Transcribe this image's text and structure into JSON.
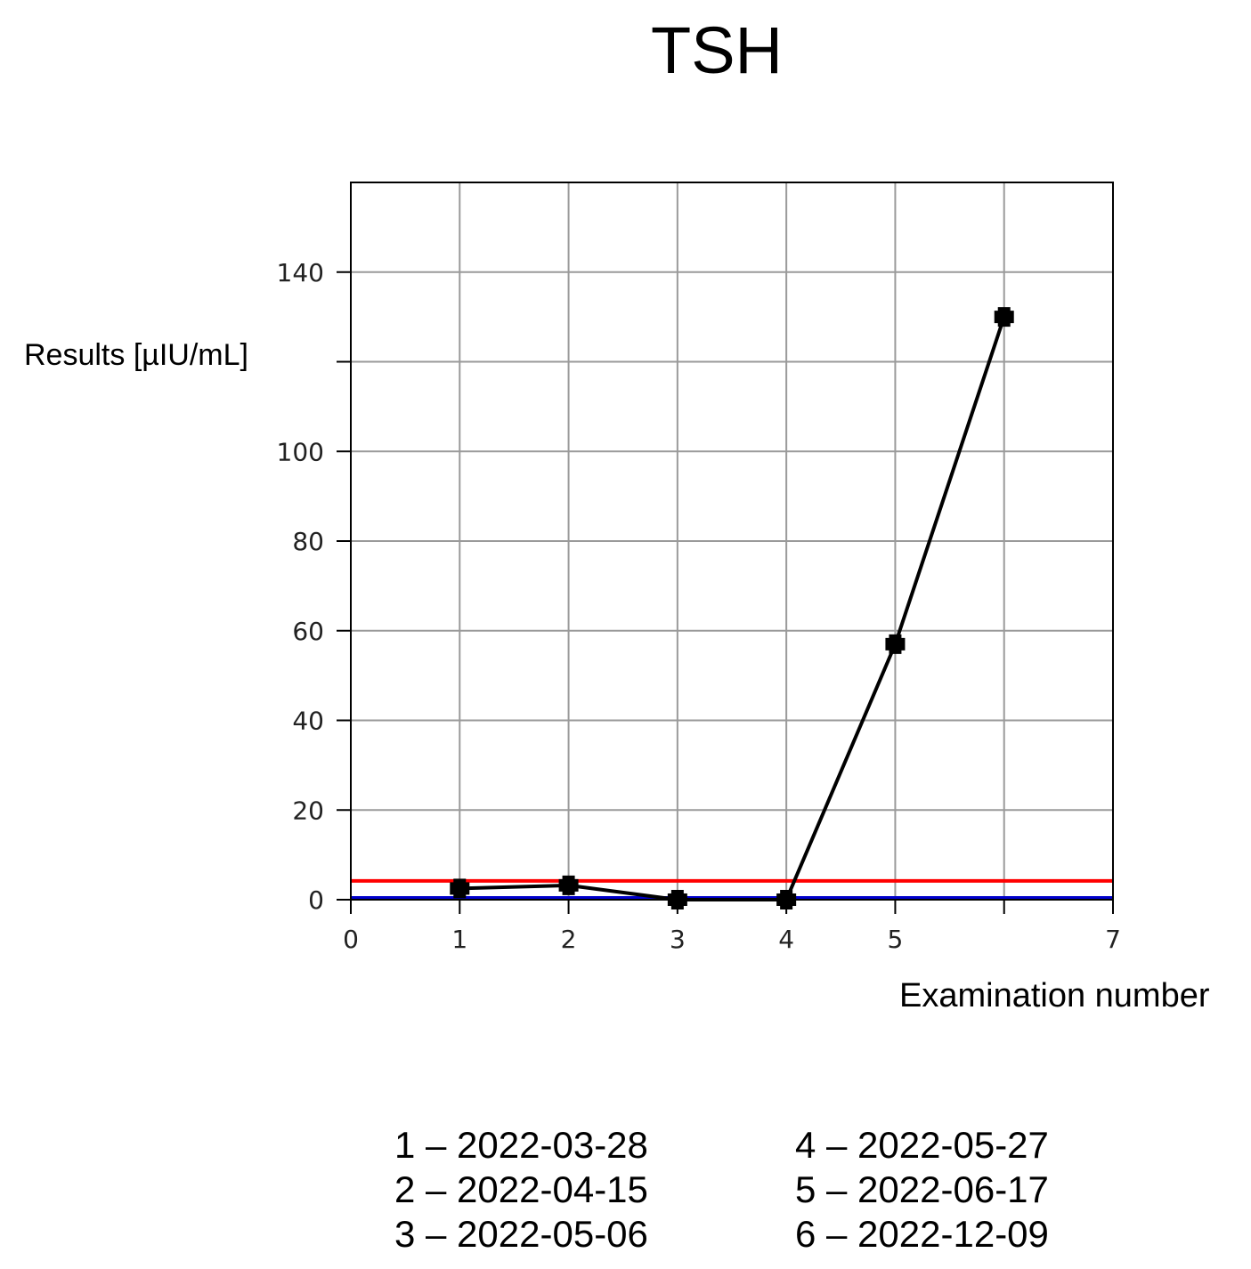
{
  "chart_data": {
    "type": "line",
    "title": "TSH",
    "ylabel": "Results [µIU/mL]",
    "xlabel": "Examination number",
    "xlim": [
      0,
      7
    ],
    "ylim": [
      0,
      160
    ],
    "x_ticks": [
      "0",
      "1",
      "2",
      "3",
      "4",
      "5",
      "7"
    ],
    "x_tick_values": [
      0,
      1,
      2,
      3,
      4,
      5,
      7
    ],
    "y_ticks": [
      "0",
      "20",
      "40",
      "60",
      "80",
      "100",
      "140"
    ],
    "y_tick_values": [
      0,
      20,
      40,
      60,
      80,
      100,
      140
    ],
    "grid": true,
    "series": [
      {
        "x": [
          1,
          2,
          3,
          4,
          5,
          6
        ],
        "values": [
          2.5,
          3.2,
          0,
          0,
          57,
          130
        ],
        "color": "#000000"
      }
    ],
    "reference_lines": [
      {
        "y": 4.2,
        "color": "#ff0000"
      },
      {
        "y": 0.4,
        "color": "#0000cc"
      }
    ],
    "legend_entries": [
      "1 – 2022-03-28",
      "2 – 2022-04-15",
      "3 – 2022-05-06",
      "4 – 2022-05-27",
      "5 – 2022-06-17",
      "6 – 2022-12-09"
    ]
  }
}
